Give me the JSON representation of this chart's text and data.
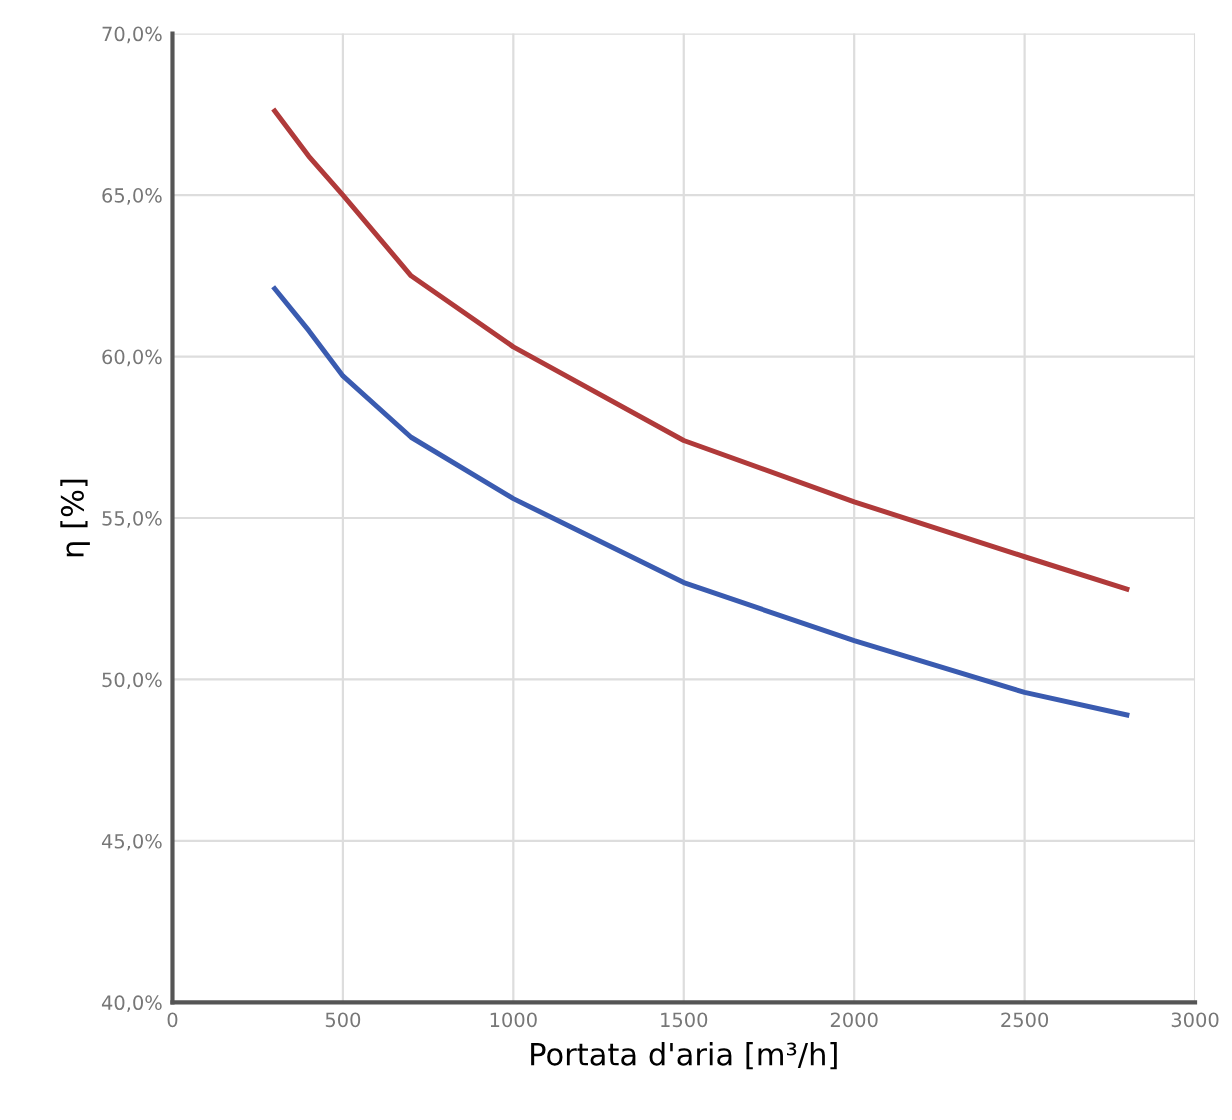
{
  "chart_data": {
    "type": "line",
    "xlabel": "Portata d'aria [m³/h]",
    "ylabel": "η [%]",
    "x": [
      300,
      400,
      500,
      700,
      1000,
      1500,
      2000,
      2500,
      2800
    ],
    "series": [
      {
        "color": "#b03a3a",
        "values": [
          67.6,
          66.2,
          65.0,
          62.5,
          60.3,
          57.4,
          55.5,
          53.8,
          52.8
        ]
      },
      {
        "color": "#3a5bb0",
        "values": [
          62.1,
          60.8,
          59.4,
          57.5,
          55.6,
          53.0,
          51.2,
          49.6,
          48.9
        ]
      }
    ],
    "xlim": [
      0,
      3000
    ],
    "xticks": [
      0,
      500,
      1000,
      1500,
      2000,
      2500,
      3000
    ],
    "ylim": [
      40,
      70
    ],
    "yticks": [
      {
        "value": 40,
        "label": "40,0%"
      },
      {
        "value": 45,
        "label": "45,0%"
      },
      {
        "value": 50,
        "label": "50,0%"
      },
      {
        "value": 55,
        "label": "55,0%"
      },
      {
        "value": 60,
        "label": "60,0%"
      },
      {
        "value": 65,
        "label": "65,0%"
      },
      {
        "value": 70,
        "label": "70,0%"
      }
    ],
    "grid": true,
    "marker": "none",
    "line_style": "solid"
  }
}
